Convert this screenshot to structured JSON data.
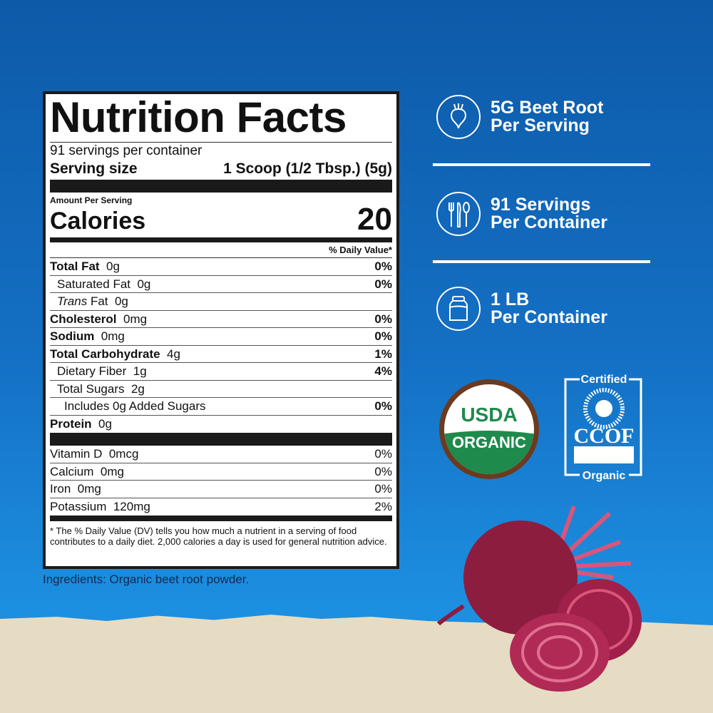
{
  "nutrition": {
    "title": "Nutrition Facts",
    "servings_per_container": "91 servings per container",
    "serving_size_label": "Serving size",
    "serving_size_value": "1 Scoop (1/2 Tbsp.) (5g)",
    "amount_per_serving": "Amount Per Serving",
    "calories_label": "Calories",
    "calories_value": "20",
    "daily_value_header": "% Daily Value*",
    "nutrients": [
      {
        "name": "Total Fat",
        "amount": "0g",
        "dv": "0%"
      },
      {
        "name": "Saturated Fat",
        "amount": "0g",
        "dv": "0%"
      },
      {
        "name": "Trans",
        "name_suffix": "Fat",
        "amount": "0g",
        "dv": ""
      },
      {
        "name": "Cholesterol",
        "amount": "0mg",
        "dv": "0%"
      },
      {
        "name": "Sodium",
        "amount": "0mg",
        "dv": "0%"
      },
      {
        "name": "Total Carbohydrate",
        "amount": "4g",
        "dv": "1%"
      },
      {
        "name": "Dietary Fiber",
        "amount": "1g",
        "dv": "4%"
      },
      {
        "name": "Total Sugars",
        "amount": "2g",
        "dv": ""
      },
      {
        "name": "Includes 0g Added Sugars",
        "amount": "",
        "dv": "0%"
      },
      {
        "name": "Protein",
        "amount": "0g",
        "dv": ""
      }
    ],
    "vitamins": [
      {
        "name": "Vitamin D",
        "amount": "0mcg",
        "dv": "0%"
      },
      {
        "name": "Calcium",
        "amount": "0mg",
        "dv": "0%"
      },
      {
        "name": "Iron",
        "amount": "0mg",
        "dv": "0%"
      },
      {
        "name": "Potassium",
        "amount": "120mg",
        "dv": "2%"
      }
    ],
    "footnote": "* The % Daily Value (DV) tells you how much a nutrient in a serving of food contributes to a daily diet. 2,000 calories a day is used for general nutrition advice."
  },
  "ingredients": "Ingredients: Organic beet root powder.",
  "features": [
    {
      "icon": "beet-icon",
      "line1": "5G Beet Root",
      "line2": "Per Serving"
    },
    {
      "icon": "cutlery-icon",
      "line1": "91 Servings",
      "line2": "Per Container"
    },
    {
      "icon": "jar-icon",
      "line1": "1 LB",
      "line2": "Per Container"
    }
  ],
  "badges": {
    "usda_top": "USDA",
    "usda_bottom": "ORGANIC",
    "ccof_top": "Certified",
    "ccof_mid": "CCOF",
    "ccof_bottom": "Organic"
  },
  "colors": {
    "background": "#1470c4",
    "usda_green": "#1e8a4c",
    "usda_brown": "#6b3a1f",
    "beet": "#8c1d3f"
  }
}
